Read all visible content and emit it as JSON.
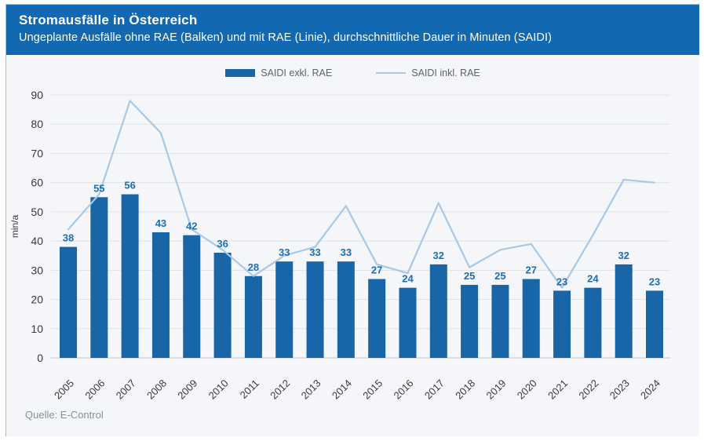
{
  "header": {
    "title": "Stromausfälle in Österreich",
    "subtitle": "Ungeplante Ausfälle ohne RAE (Balken) und mit RAE (Linie), durchschnittliche Dauer in Minuten (SAIDI)"
  },
  "legend": {
    "bar_label": "SAIDI exkl. RAE",
    "line_label": "SAIDI inkl. RAE"
  },
  "footer": {
    "source": "Quelle: E-Control"
  },
  "colors": {
    "header_bg": "#1268b1",
    "header_text": "#ffffff",
    "bar": "#1866a8",
    "line": "#a9c8e6",
    "data_label": "#1c6fb3",
    "panel_bg": "#f4f6f9",
    "grid": "#dfe2e6",
    "axis_line": "#c3c7cb",
    "axis_text": "#3a3a3a",
    "legend_text": "#5f6368",
    "source_text": "#8a8f94"
  },
  "chart_data": {
    "type": "bar",
    "subtype": "bar+line combo",
    "title": "Stromausfälle in Österreich",
    "subtitle": "Ungeplante Ausfälle ohne RAE (Balken) und mit RAE (Linie), durchschnittliche Dauer in Minuten (SAIDI)",
    "categories": [
      "2005",
      "2006",
      "2007",
      "2008",
      "2009",
      "2010",
      "2011",
      "2012",
      "2013",
      "2014",
      "2015",
      "2016",
      "2017",
      "2018",
      "2019",
      "2020",
      "2021",
      "2022",
      "2023",
      "2024"
    ],
    "series": [
      {
        "name": "SAIDI exkl. RAE",
        "type": "bar",
        "values": [
          38,
          55,
          56,
          43,
          42,
          36,
          28,
          33,
          33,
          33,
          27,
          24,
          32,
          25,
          25,
          27,
          23,
          24,
          32,
          23
        ]
      },
      {
        "name": "SAIDI inkl. RAE",
        "type": "line",
        "values": [
          44,
          56,
          88,
          77,
          44,
          37,
          28,
          35,
          38,
          52,
          32,
          29,
          53,
          31,
          37,
          39,
          24,
          42,
          61,
          60
        ]
      }
    ],
    "xlabel": "",
    "ylabel": "min/a",
    "ylim": [
      0,
      90
    ],
    "ytick_step": 10,
    "grid": true,
    "legend_position": "top-center",
    "data_labels_on_bars": true,
    "source": "Quelle: E-Control"
  }
}
